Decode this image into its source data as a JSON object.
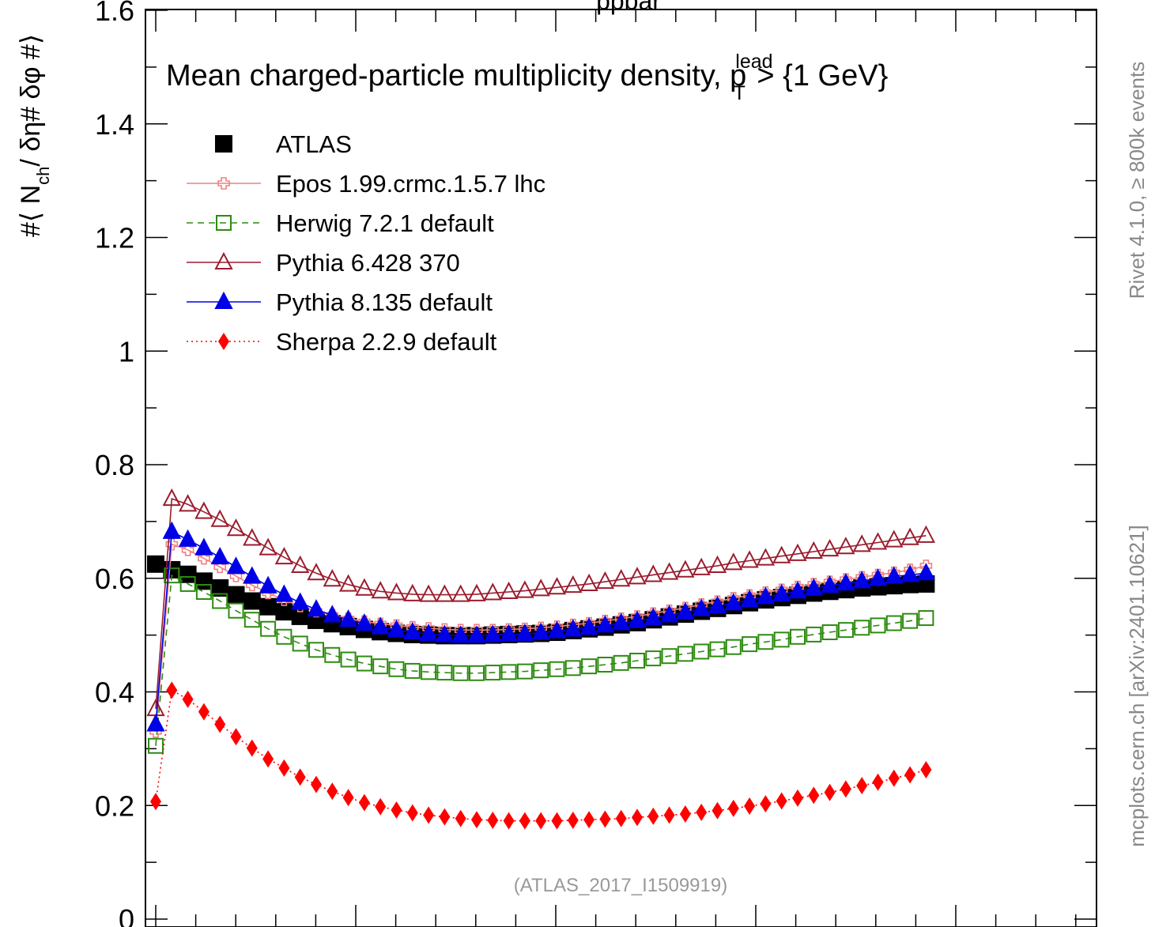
{
  "chart_data": {
    "type": "line",
    "title_top": "ppbar",
    "annotation": "Mean charged-particle multiplicity density, p",
    "annotation_sup": "lead",
    "annotation_sub": "T",
    "annotation_tail": " > {1 GeV}",
    "ylabel": "#⟨ N",
    "ylabel_sub": "ch",
    "ylabel_tail": "/ δη# δφ #⟩",
    "ylim": [
      0,
      1.6
    ],
    "yticks": [
      "0",
      "0.2",
      "0.4",
      "0.6",
      "0.8",
      "1",
      "1.2",
      "1.4",
      "1.6"
    ],
    "reference": "(ATLAS_2017_I1509919)",
    "side_top": "Rivet 4.1.0, ≥ 800k events",
    "side_bottom": "mcplots.cern.ch [arXiv:2401.10621]",
    "legend_position": "top-left",
    "series": [
      {
        "name": "ATLAS",
        "color": "#000000",
        "marker": "square-filled",
        "line": "none",
        "values": [
          0.625,
          0.615,
          0.607,
          0.595,
          0.583,
          0.571,
          0.56,
          0.55,
          0.541,
          0.533,
          0.526,
          0.52,
          0.515,
          0.51,
          0.506,
          0.503,
          0.501,
          0.5,
          0.499,
          0.499,
          0.499,
          0.5,
          0.501,
          0.502,
          0.503,
          0.505,
          0.508,
          0.511,
          0.514,
          0.518,
          0.522,
          0.527,
          0.532,
          0.537,
          0.542,
          0.547,
          0.552,
          0.557,
          0.562,
          0.566,
          0.57,
          0.574,
          0.577,
          0.58,
          0.583,
          0.585,
          0.587,
          0.589,
          0.59
        ]
      },
      {
        "name": "Epos 1.99.crmc.1.5.7 lhc",
        "color": "#f08080",
        "marker": "cross-open",
        "line": "solid",
        "values": [
          0.33,
          0.66,
          0.65,
          0.635,
          0.62,
          0.604,
          0.588,
          0.574,
          0.562,
          0.551,
          0.542,
          0.535,
          0.529,
          0.524,
          0.52,
          0.517,
          0.514,
          0.512,
          0.51,
          0.509,
          0.509,
          0.509,
          0.51,
          0.511,
          0.513,
          0.515,
          0.518,
          0.521,
          0.525,
          0.529,
          0.533,
          0.538,
          0.543,
          0.548,
          0.554,
          0.559,
          0.565,
          0.57,
          0.575,
          0.58,
          0.585,
          0.59,
          0.594,
          0.598,
          0.602,
          0.606,
          0.61,
          0.615,
          0.622
        ]
      },
      {
        "name": "Herwig 7.2.1 default",
        "color": "#2e8b10",
        "marker": "square-open",
        "line": "dashed",
        "values": [
          0.305,
          0.605,
          0.59,
          0.576,
          0.56,
          0.543,
          0.527,
          0.511,
          0.497,
          0.485,
          0.474,
          0.465,
          0.457,
          0.45,
          0.445,
          0.44,
          0.437,
          0.435,
          0.434,
          0.433,
          0.433,
          0.434,
          0.435,
          0.436,
          0.438,
          0.44,
          0.442,
          0.445,
          0.448,
          0.451,
          0.455,
          0.459,
          0.463,
          0.467,
          0.471,
          0.475,
          0.479,
          0.484,
          0.488,
          0.492,
          0.497,
          0.501,
          0.505,
          0.509,
          0.513,
          0.517,
          0.521,
          0.525,
          0.53
        ]
      },
      {
        "name": "Pythia 6.428 370",
        "color": "#9b1c2e",
        "marker": "triangle-open",
        "line": "solid",
        "values": [
          0.37,
          0.74,
          0.73,
          0.717,
          0.703,
          0.687,
          0.67,
          0.653,
          0.637,
          0.622,
          0.609,
          0.598,
          0.589,
          0.582,
          0.577,
          0.574,
          0.572,
          0.571,
          0.571,
          0.571,
          0.572,
          0.574,
          0.576,
          0.578,
          0.581,
          0.584,
          0.587,
          0.59,
          0.594,
          0.598,
          0.602,
          0.606,
          0.61,
          0.614,
          0.618,
          0.622,
          0.627,
          0.631,
          0.635,
          0.639,
          0.643,
          0.647,
          0.651,
          0.655,
          0.659,
          0.663,
          0.667,
          0.671,
          0.675
        ]
      },
      {
        "name": "Pythia 8.135 default",
        "color": "#0000e6",
        "marker": "triangle-filled",
        "line": "solid",
        "values": [
          0.343,
          0.682,
          0.668,
          0.653,
          0.637,
          0.62,
          0.603,
          0.586,
          0.571,
          0.557,
          0.545,
          0.535,
          0.527,
          0.52,
          0.514,
          0.509,
          0.505,
          0.502,
          0.5,
          0.499,
          0.499,
          0.5,
          0.501,
          0.502,
          0.504,
          0.507,
          0.51,
          0.513,
          0.517,
          0.521,
          0.525,
          0.53,
          0.535,
          0.54,
          0.546,
          0.551,
          0.556,
          0.562,
          0.567,
          0.572,
          0.577,
          0.582,
          0.587,
          0.591,
          0.595,
          0.599,
          0.603,
          0.606,
          0.609
        ]
      },
      {
        "name": "Sherpa 2.2.9 default",
        "color": "#ff0000",
        "marker": "diamond-filled",
        "line": "dotted",
        "values": [
          0.207,
          0.403,
          0.387,
          0.365,
          0.343,
          0.321,
          0.301,
          0.282,
          0.266,
          0.25,
          0.237,
          0.225,
          0.214,
          0.205,
          0.198,
          0.192,
          0.187,
          0.183,
          0.18,
          0.177,
          0.175,
          0.174,
          0.173,
          0.173,
          0.173,
          0.173,
          0.174,
          0.175,
          0.176,
          0.177,
          0.179,
          0.181,
          0.183,
          0.185,
          0.188,
          0.191,
          0.195,
          0.199,
          0.203,
          0.208,
          0.213,
          0.218,
          0.223,
          0.229,
          0.235,
          0.241,
          0.248,
          0.254,
          0.263
        ]
      }
    ]
  }
}
